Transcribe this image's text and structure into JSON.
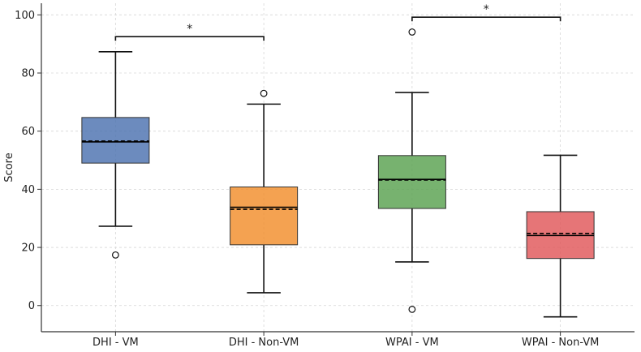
{
  "chart_data": {
    "type": "box",
    "title": "",
    "xlabel": "",
    "ylabel": "Score",
    "ylim": [
      -9,
      104
    ],
    "yticks": [
      0,
      20,
      40,
      60,
      80,
      100
    ],
    "grid": true,
    "categories": [
      "DHI - VM",
      "DHI - Non-VM",
      "WPAI - VM",
      "WPAI - Non-VM"
    ],
    "boxes": [
      {
        "name": "DHI - VM",
        "color": "#4c72b0",
        "whisker_low": 27.3,
        "q1": 49.0,
        "median": 56.3,
        "mean": 56.6,
        "q3": 64.7,
        "whisker_high": 87.3,
        "outliers": [
          17.4
        ]
      },
      {
        "name": "DHI - Non-VM",
        "color": "#f28e2b",
        "whisker_low": 4.4,
        "q1": 20.9,
        "median": 33.8,
        "mean": 33.1,
        "q3": 40.8,
        "whisker_high": 69.3,
        "outliers": [
          73.0
        ]
      },
      {
        "name": "WPAI - VM",
        "color": "#59a14f",
        "whisker_low": 15.0,
        "q1": 33.4,
        "median": 43.4,
        "mean": 43.2,
        "q3": 51.6,
        "whisker_high": 73.3,
        "outliers": [
          94.1,
          -1.3
        ]
      },
      {
        "name": "WPAI - Non-VM",
        "color": "#e15759",
        "whisker_low": -3.9,
        "q1": 16.2,
        "median": 24.1,
        "mean": 24.8,
        "q3": 32.3,
        "whisker_high": 51.7,
        "outliers": []
      }
    ],
    "significance": [
      {
        "from": 0,
        "to": 1,
        "y": 92.5,
        "label": "*"
      },
      {
        "from": 2,
        "to": 3,
        "y": 99.2,
        "label": "*"
      }
    ],
    "legend": "none"
  }
}
